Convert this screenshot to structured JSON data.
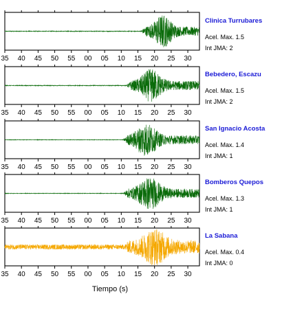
{
  "chart_data": {
    "type": "line",
    "xlabel": "Tiempo (s)",
    "tick_labels": [
      "35",
      "40",
      "45",
      "50",
      "55",
      "00",
      "05",
      "10",
      "15",
      "20",
      "25",
      "30"
    ],
    "grid": false,
    "stations": [
      {
        "name": "Clinica Turrubares",
        "acel_label": "Acel. Max. 1.5",
        "jma_label": "Int JMA: 2",
        "color": "#0a6b0a",
        "onset": 15.8,
        "peak_time": 22.5,
        "peak": 1.5,
        "width": 4.0,
        "pre_noise": 0.03
      },
      {
        "name": "Bebedero, Escazu",
        "acel_label": "Acel. Max. 1.5",
        "jma_label": "Int JMA: 2",
        "color": "#0a6b0a",
        "onset": 11.5,
        "peak_time": 19.0,
        "peak": 1.5,
        "width": 5.0,
        "pre_noise": 0.03
      },
      {
        "name": "San Ignacio Acosta",
        "acel_label": "Acel. Max. 1.4",
        "jma_label": "Int JMA: 1",
        "color": "#0a6b0a",
        "onset": 10.5,
        "peak_time": 17.5,
        "peak": 1.4,
        "width": 5.5,
        "pre_noise": 0.02
      },
      {
        "name": "Bomberos Quepos",
        "acel_label": "Acel. Max. 1.3",
        "jma_label": "Int JMA: 1",
        "color": "#0a6b0a",
        "onset": 10.5,
        "peak_time": 18.5,
        "peak": 1.3,
        "width": 6.0,
        "pre_noise": 0.02
      },
      {
        "name": "La Sabana",
        "acel_label": "Acel. Max. 0.4",
        "jma_label": "Int JMA: 0",
        "color": "#f5a800",
        "onset": 11.0,
        "peak_time": 20.0,
        "peak": 0.4,
        "width": 7.0,
        "pre_noise": 0.06
      }
    ]
  }
}
